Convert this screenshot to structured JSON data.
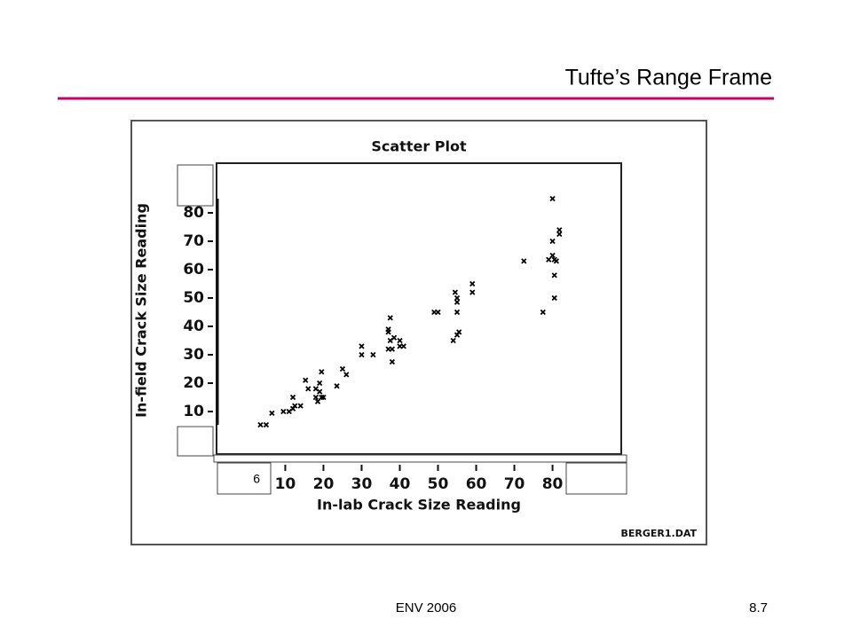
{
  "slide": {
    "title": "Tufte’s Range Frame",
    "footer_left": "ENV 2006",
    "footer_right": "8.7",
    "overlay_label": "6"
  },
  "chart_data": {
    "type": "scatter",
    "title": "Scatter Plot",
    "x_label": "In-lab Crack Size Reading",
    "y_label": "In-field Crack Size Reading",
    "source": "BERGER1.DAT",
    "color": "#000000",
    "x": [
      3.5,
      5,
      6.5,
      9.5,
      11,
      12,
      12.5,
      12,
      14,
      15.3,
      16,
      18,
      18,
      18.5,
      19,
      19,
      19.5,
      19.5,
      20,
      23.5,
      25,
      26,
      30,
      30,
      33,
      37.5,
      37,
      37,
      37.5,
      38,
      38,
      38.5,
      40,
      40,
      41,
      37,
      49,
      50,
      54.5,
      55,
      55,
      55,
      54,
      55,
      55.5,
      59,
      59,
      72.5,
      77.5,
      80,
      80,
      80,
      80.5,
      81.8,
      81.8,
      81,
      80.5,
      80.5,
      79
    ],
    "y": [
      5.3,
      5.3,
      9.4,
      10,
      10,
      11,
      12,
      15,
      12,
      21,
      18,
      15,
      18,
      13.5,
      17,
      20,
      24,
      15,
      15,
      19,
      25,
      23,
      33,
      30,
      30,
      43,
      39,
      38,
      35,
      32,
      27.5,
      36,
      35,
      33,
      33,
      32,
      45,
      45,
      52,
      48.5,
      45,
      50,
      35,
      37,
      38,
      55,
      52,
      63,
      45,
      85,
      70,
      65,
      63.5,
      74,
      72.5,
      63,
      58,
      50,
      63.5
    ],
    "xlim": [
      -8,
      98
    ],
    "ylim": [
      -5,
      97.5
    ],
    "xticks": [
      10,
      20,
      30,
      40,
      50,
      60,
      70,
      80
    ],
    "yticks": [
      10,
      20,
      30,
      40,
      50,
      60,
      70,
      80
    ],
    "range_frame": true
  }
}
